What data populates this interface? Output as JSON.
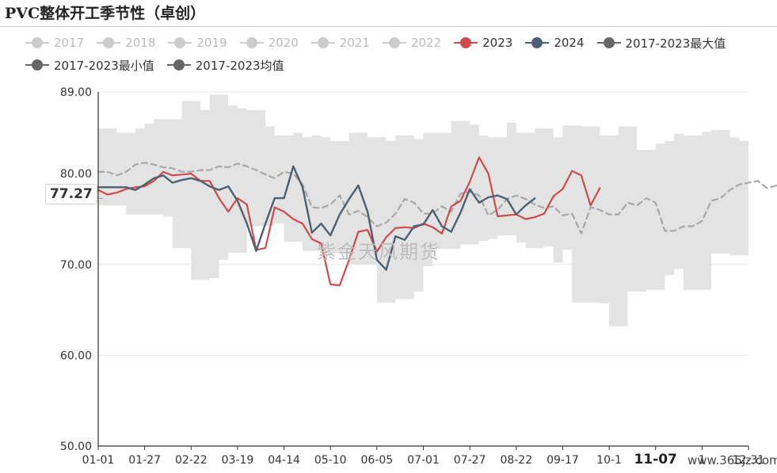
{
  "title": "PVC整体开工季节性（卓创）",
  "watermark": "紫金天风期货",
  "site": "www.365jz.com",
  "current_value_label": "77.27",
  "colors": {
    "inactive": "#cccccc",
    "s2023": "#d14a4a",
    "s2024": "#4e5f70",
    "max": "#666666",
    "min": "#666666",
    "avg": "#666666",
    "band": "#e3e3e3",
    "avg_line": "#a8a8a8"
  },
  "chart_data": {
    "type": "line",
    "title": "PVC整体开工季节性（卓创）",
    "xlabel": "",
    "ylabel": "",
    "ylim": [
      50,
      89
    ],
    "yticks": [
      "50.00",
      "60.00",
      "70.00",
      "80.00",
      "89.00"
    ],
    "ytick_values": [
      50,
      60,
      70,
      80,
      89
    ],
    "xticks": [
      "01-01",
      "01-27",
      "02-22",
      "03-19",
      "04-14",
      "05-10",
      "06-05",
      "07-01",
      "07-27",
      "08-22",
      "09-17",
      "10-1",
      "11-07",
      "1",
      "12-31"
    ],
    "grid": true,
    "legend": [
      {
        "name": "2017",
        "active": false
      },
      {
        "name": "2018",
        "active": false
      },
      {
        "name": "2019",
        "active": false
      },
      {
        "name": "2020",
        "active": false
      },
      {
        "name": "2021",
        "active": false
      },
      {
        "name": "2022",
        "active": false
      },
      {
        "name": "2023",
        "active": true
      },
      {
        "name": "2024",
        "active": true
      },
      {
        "name": "2017-2023最大值",
        "active": true
      },
      {
        "name": "2017-2023最小值",
        "active": true
      },
      {
        "name": "2017-2023均值",
        "active": true
      }
    ],
    "series": [
      {
        "name": "2017-2023最大值",
        "step": true,
        "values": [
          85,
          85,
          84.5,
          84.5,
          85,
          85.5,
          86,
          86,
          86,
          88,
          88,
          87,
          88.7,
          88.7,
          87.5,
          87.2,
          87,
          87,
          85.2,
          84.2,
          84.2,
          84.5,
          84,
          84.2,
          84,
          83.6,
          83.6,
          84.5,
          84.5,
          84,
          84,
          83.6,
          84.2,
          84.2,
          83.8,
          84.5,
          84.5,
          84.5,
          85.8,
          85.8,
          85.4,
          84.2,
          84,
          84,
          85.6,
          84.5,
          84.5,
          85,
          85,
          84,
          85.3,
          85.3,
          85.2,
          85.2,
          84.2,
          84.2,
          85.2,
          85.2,
          82.6,
          82.6,
          83.3,
          83.6,
          84.4,
          84.2,
          84.2,
          84.6,
          84.8,
          84.8,
          84,
          83.6,
          83.6
        ]
      },
      {
        "name": "2017-2023最小值",
        "step": true,
        "values": [
          76.5,
          76.5,
          76.5,
          75.5,
          75.5,
          75.5,
          75.5,
          75.3,
          71.8,
          71.8,
          68.3,
          68.3,
          68.5,
          70.5,
          71.3,
          71.3,
          74.2,
          74.2,
          74.2,
          74.5,
          72.5,
          72.5,
          71.5,
          71.5,
          71,
          71.2,
          71.2,
          70,
          70,
          70,
          65.8,
          65.8,
          66.2,
          66.2,
          67,
          69.8,
          71.7,
          71.7,
          71.7,
          72.2,
          72.2,
          72.6,
          72.8,
          73.2,
          73.2,
          72.4,
          71.8,
          71.8,
          72,
          70.2,
          71.6,
          65.8,
          65.8,
          65.8,
          65.7,
          63.2,
          63.2,
          67,
          67,
          67.2,
          67.2,
          68.8,
          69.5,
          67.2,
          67.2,
          67.2,
          71.2,
          71.2,
          71,
          71,
          70.8,
          70.8,
          71.6,
          71.6,
          73.5,
          73.5,
          76
        ]
      },
      {
        "name": "2017-2023均值",
        "dashed": true,
        "values": [
          80.2,
          80.2,
          79.8,
          80.2,
          81,
          81.2,
          81,
          80.7,
          80.6,
          80.2,
          80.2,
          80.4,
          80.4,
          80.8,
          80.7,
          81.1,
          80.8,
          80.4,
          79.9,
          79.5,
          80.2,
          80,
          78.8,
          76.3,
          76.2,
          76.6,
          77.6,
          75.5,
          75.9,
          75.2,
          74.2,
          74.6,
          75.6,
          77.2,
          76.8,
          75.6,
          75.6,
          76.4,
          75.8,
          77.8,
          78,
          77.6,
          75.4,
          76,
          77.2,
          77.6,
          77.2,
          76.6,
          76.2,
          76.4,
          75.4,
          75.6,
          73.4,
          76.3,
          76,
          75.5,
          75.5,
          76.8,
          76.5,
          77.3,
          76.8,
          73.7,
          73.7,
          74.2,
          74.2,
          74.8,
          77,
          77.3,
          78.2,
          78.8,
          79,
          79.2,
          78.4,
          78.7,
          79.8
        ]
      },
      {
        "name": "2023",
        "values": [
          78.2,
          77.7,
          77.9,
          78.3,
          78.5,
          78.6,
          79.2,
          80.2,
          79.8,
          79.9,
          80,
          79.2,
          79.2,
          77.3,
          75.8,
          77.3,
          76.6,
          71.6,
          71.8,
          76.3,
          75.8,
          75,
          74.5,
          72.8,
          72.3,
          67.8,
          67.7,
          70.5,
          73.6,
          73.8,
          71.4,
          73,
          74,
          74.1,
          74,
          74.5,
          74.1,
          73.4,
          76.4,
          77,
          79.1,
          81.8,
          80,
          75.3,
          75.4,
          75.5,
          75,
          75.2,
          75.6,
          77.5,
          78.3,
          80.3,
          79.8,
          76.5,
          78.4
        ]
      },
      {
        "name": "2024",
        "values": [
          78.5,
          78.5,
          78.5,
          78.5,
          78.2,
          78.8,
          79.5,
          79.8,
          79,
          79.3,
          79.5,
          79.2,
          78.6,
          78.2,
          78.6,
          77,
          74.5,
          71.5,
          74.5,
          77.3,
          77.3,
          80.8,
          78.5,
          73.5,
          74.5,
          73.2,
          75.5,
          77.2,
          78.7,
          75.8,
          70.5,
          69.4,
          73.1,
          72.7,
          74.2,
          74.4,
          76,
          74.2,
          73.6,
          75.7,
          78.3,
          76.8,
          77.4,
          77.6,
          77.2,
          75.5,
          76.5,
          77.27
        ]
      }
    ]
  }
}
